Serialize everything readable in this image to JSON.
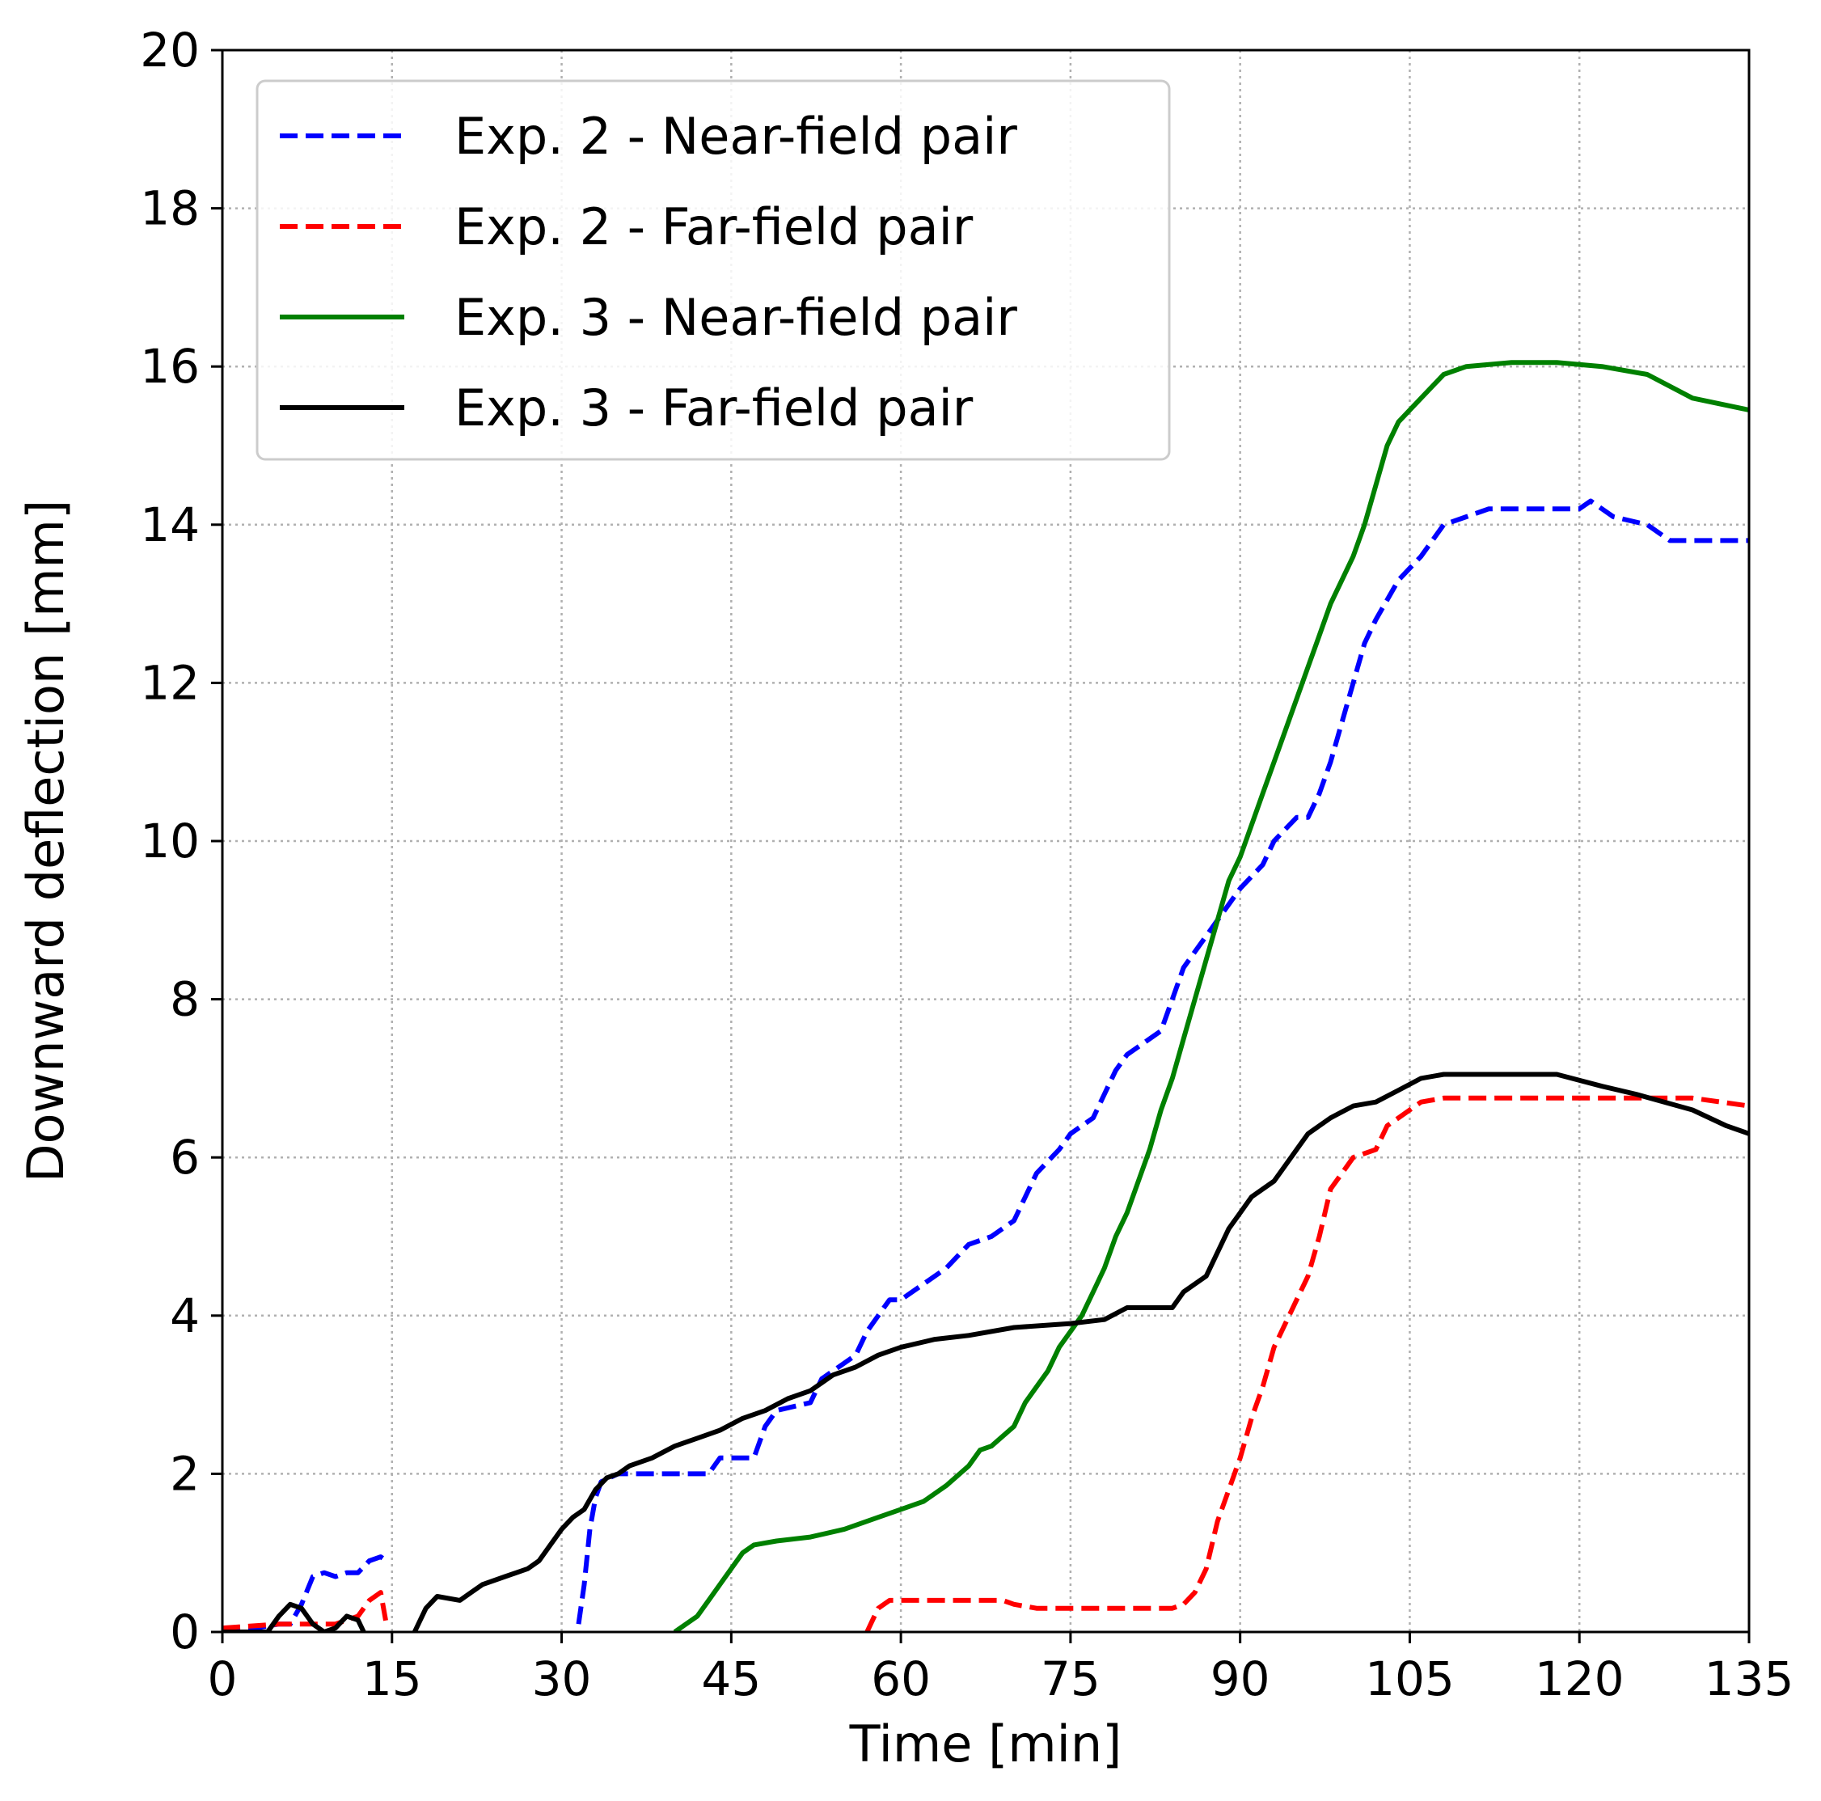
{
  "chart_data": {
    "type": "line",
    "title": "",
    "xlabel": "Time [min]",
    "ylabel": "Downward deflection [mm]",
    "xlim": [
      0,
      135
    ],
    "ylim": [
      0,
      20
    ],
    "xticks": [
      0,
      15,
      30,
      45,
      60,
      75,
      90,
      105,
      120,
      135
    ],
    "yticks": [
      0,
      2,
      4,
      6,
      8,
      10,
      12,
      14,
      16,
      18,
      20
    ],
    "grid": true,
    "legend_position": "top-left",
    "series": [
      {
        "name": "Exp. 2 - Near-field pair",
        "color": "#0000ff",
        "dash": "dashed",
        "segments": [
          [
            [
              0,
              0.05
            ],
            [
              3,
              0.05
            ],
            [
              5,
              0.1
            ],
            [
              6,
              0.1
            ],
            [
              7,
              0.35
            ],
            [
              8,
              0.7
            ],
            [
              9,
              0.75
            ],
            [
              10,
              0.7
            ],
            [
              11,
              0.75
            ],
            [
              12,
              0.75
            ],
            [
              13,
              0.9
            ],
            [
              14,
              0.95
            ],
            [
              14.5,
              0.9
            ]
          ],
          [
            [
              31.5,
              0.1
            ],
            [
              32,
              0.6
            ],
            [
              32.5,
              1.3
            ],
            [
              33,
              1.7
            ],
            [
              33.5,
              1.9
            ],
            [
              35,
              2.0
            ],
            [
              43,
              2.0
            ],
            [
              44,
              2.2
            ],
            [
              47,
              2.2
            ],
            [
              48,
              2.6
            ],
            [
              49,
              2.8
            ],
            [
              52,
              2.9
            ],
            [
              53,
              3.2
            ],
            [
              56,
              3.5
            ],
            [
              57,
              3.8
            ],
            [
              58,
              4.0
            ],
            [
              59,
              4.2
            ],
            [
              60,
              4.2
            ],
            [
              62,
              4.4
            ],
            [
              64,
              4.6
            ],
            [
              66,
              4.9
            ],
            [
              68,
              5.0
            ],
            [
              70,
              5.2
            ],
            [
              71,
              5.5
            ],
            [
              72,
              5.8
            ],
            [
              74,
              6.1
            ],
            [
              75,
              6.3
            ],
            [
              77,
              6.5
            ],
            [
              78,
              6.8
            ],
            [
              79,
              7.1
            ],
            [
              80,
              7.3
            ],
            [
              82,
              7.5
            ],
            [
              83,
              7.6
            ],
            [
              84,
              8.0
            ],
            [
              85,
              8.4
            ],
            [
              86,
              8.6
            ],
            [
              88,
              9.0
            ],
            [
              90,
              9.4
            ],
            [
              92,
              9.7
            ],
            [
              93,
              10.0
            ],
            [
              95,
              10.3
            ],
            [
              96,
              10.3
            ],
            [
              97,
              10.6
            ],
            [
              98,
              11.0
            ],
            [
              99,
              11.5
            ],
            [
              100,
              12.0
            ],
            [
              101,
              12.5
            ],
            [
              102,
              12.8
            ],
            [
              104,
              13.3
            ],
            [
              106,
              13.6
            ],
            [
              108,
              14.0
            ],
            [
              110,
              14.1
            ],
            [
              112,
              14.2
            ],
            [
              120,
              14.2
            ],
            [
              121,
              14.3
            ],
            [
              123,
              14.1
            ],
            [
              126,
              14.0
            ],
            [
              128,
              13.8
            ],
            [
              135,
              13.8
            ]
          ]
        ]
      },
      {
        "name": "Exp. 2 - Far-field pair",
        "color": "#ff0000",
        "dash": "dashed",
        "segments": [
          [
            [
              0,
              0.05
            ],
            [
              5,
              0.1
            ],
            [
              7,
              0.1
            ],
            [
              8,
              0.1
            ],
            [
              9,
              0.1
            ],
            [
              10,
              0.1
            ],
            [
              11,
              0.15
            ],
            [
              12,
              0.2
            ],
            [
              13,
              0.4
            ],
            [
              14,
              0.5
            ],
            [
              14.5,
              0.1
            ]
          ],
          [
            [
              57,
              0.0
            ],
            [
              57.5,
              0.15
            ],
            [
              58,
              0.3
            ],
            [
              59,
              0.4
            ],
            [
              69,
              0.4
            ],
            [
              70,
              0.35
            ],
            [
              72,
              0.3
            ],
            [
              84,
              0.3
            ],
            [
              85,
              0.35
            ],
            [
              86,
              0.5
            ],
            [
              87,
              0.8
            ],
            [
              88,
              1.4
            ],
            [
              89,
              1.8
            ],
            [
              90,
              2.2
            ],
            [
              91,
              2.7
            ],
            [
              92,
              3.1
            ],
            [
              93,
              3.6
            ],
            [
              94,
              3.9
            ],
            [
              95,
              4.2
            ],
            [
              96,
              4.5
            ],
            [
              97,
              5.0
            ],
            [
              98,
              5.6
            ],
            [
              99,
              5.8
            ],
            [
              100,
              6.0
            ],
            [
              102,
              6.1
            ],
            [
              103,
              6.4
            ],
            [
              104,
              6.5
            ],
            [
              106,
              6.7
            ],
            [
              108,
              6.75
            ],
            [
              120,
              6.75
            ],
            [
              130,
              6.75
            ],
            [
              135,
              6.65
            ]
          ]
        ]
      },
      {
        "name": "Exp. 3 - Near-field pair",
        "color": "#008000",
        "dash": "solid",
        "segments": [
          [
            [
              40,
              0.0
            ],
            [
              41,
              0.1
            ],
            [
              42,
              0.2
            ],
            [
              43,
              0.4
            ],
            [
              44,
              0.6
            ],
            [
              45,
              0.8
            ],
            [
              46,
              1.0
            ],
            [
              47,
              1.1
            ],
            [
              49,
              1.15
            ],
            [
              52,
              1.2
            ],
            [
              55,
              1.3
            ],
            [
              58,
              1.45
            ],
            [
              60,
              1.55
            ],
            [
              62,
              1.65
            ],
            [
              64,
              1.85
            ],
            [
              66,
              2.1
            ],
            [
              67,
              2.3
            ],
            [
              68,
              2.35
            ],
            [
              70,
              2.6
            ],
            [
              71,
              2.9
            ],
            [
              72,
              3.1
            ],
            [
              73,
              3.3
            ],
            [
              74,
              3.6
            ],
            [
              75,
              3.8
            ],
            [
              76,
              4.0
            ],
            [
              77,
              4.3
            ],
            [
              78,
              4.6
            ],
            [
              79,
              5.0
            ],
            [
              80,
              5.3
            ],
            [
              81,
              5.7
            ],
            [
              82,
              6.1
            ],
            [
              83,
              6.6
            ],
            [
              84,
              7.0
            ],
            [
              85,
              7.5
            ],
            [
              86,
              8.0
            ],
            [
              87,
              8.5
            ],
            [
              88,
              9.0
            ],
            [
              89,
              9.5
            ],
            [
              90,
              9.8
            ],
            [
              91,
              10.2
            ],
            [
              92,
              10.6
            ],
            [
              93,
              11.0
            ],
            [
              94,
              11.4
            ],
            [
              95,
              11.8
            ],
            [
              96,
              12.2
            ],
            [
              97,
              12.6
            ],
            [
              98,
              13.0
            ],
            [
              99,
              13.3
            ],
            [
              100,
              13.6
            ],
            [
              101,
              14.0
            ],
            [
              102,
              14.5
            ],
            [
              103,
              15.0
            ],
            [
              104,
              15.3
            ],
            [
              106,
              15.6
            ],
            [
              108,
              15.9
            ],
            [
              110,
              16.0
            ],
            [
              114,
              16.05
            ],
            [
              118,
              16.05
            ],
            [
              122,
              16.0
            ],
            [
              126,
              15.9
            ],
            [
              130,
              15.6
            ],
            [
              135,
              15.45
            ]
          ]
        ]
      },
      {
        "name": "Exp. 3 - Far-field pair",
        "color": "#000000",
        "dash": "solid",
        "segments": [
          [
            [
              0,
              0.0
            ],
            [
              4,
              0.0
            ],
            [
              5,
              0.2
            ],
            [
              6,
              0.35
            ],
            [
              7,
              0.3
            ],
            [
              8,
              0.1
            ],
            [
              9,
              0.0
            ],
            [
              10,
              0.05
            ],
            [
              11,
              0.2
            ],
            [
              12,
              0.15
            ],
            [
              12.5,
              0.0
            ]
          ],
          [
            [
              17,
              0.0
            ],
            [
              18,
              0.3
            ],
            [
              19,
              0.45
            ],
            [
              21,
              0.4
            ],
            [
              22,
              0.5
            ],
            [
              23,
              0.6
            ],
            [
              25,
              0.7
            ],
            [
              27,
              0.8
            ],
            [
              28,
              0.9
            ],
            [
              29,
              1.1
            ],
            [
              30,
              1.3
            ],
            [
              31,
              1.45
            ],
            [
              32,
              1.55
            ],
            [
              33,
              1.8
            ],
            [
              34,
              1.95
            ],
            [
              35,
              2.0
            ],
            [
              36,
              2.1
            ],
            [
              37,
              2.15
            ],
            [
              38,
              2.2
            ],
            [
              40,
              2.35
            ],
            [
              42,
              2.45
            ],
            [
              44,
              2.55
            ],
            [
              46,
              2.7
            ],
            [
              48,
              2.8
            ],
            [
              50,
              2.95
            ],
            [
              52,
              3.05
            ],
            [
              54,
              3.25
            ],
            [
              56,
              3.35
            ],
            [
              58,
              3.5
            ],
            [
              60,
              3.6
            ],
            [
              63,
              3.7
            ],
            [
              66,
              3.75
            ],
            [
              70,
              3.85
            ],
            [
              75,
              3.9
            ],
            [
              78,
              3.95
            ],
            [
              80,
              4.1
            ],
            [
              84,
              4.1
            ],
            [
              85,
              4.3
            ],
            [
              86,
              4.4
            ],
            [
              87,
              4.5
            ],
            [
              88,
              4.8
            ],
            [
              89,
              5.1
            ],
            [
              90,
              5.3
            ],
            [
              91,
              5.5
            ],
            [
              93,
              5.7
            ],
            [
              94,
              5.9
            ],
            [
              95,
              6.1
            ],
            [
              96,
              6.3
            ],
            [
              97,
              6.4
            ],
            [
              98,
              6.5
            ],
            [
              100,
              6.65
            ],
            [
              102,
              6.7
            ],
            [
              104,
              6.85
            ],
            [
              106,
              7.0
            ],
            [
              108,
              7.05
            ],
            [
              114,
              7.05
            ],
            [
              118,
              7.05
            ],
            [
              122,
              6.9
            ],
            [
              125,
              6.8
            ],
            [
              130,
              6.6
            ],
            [
              133,
              6.4
            ],
            [
              135,
              6.3
            ]
          ]
        ]
      }
    ]
  }
}
